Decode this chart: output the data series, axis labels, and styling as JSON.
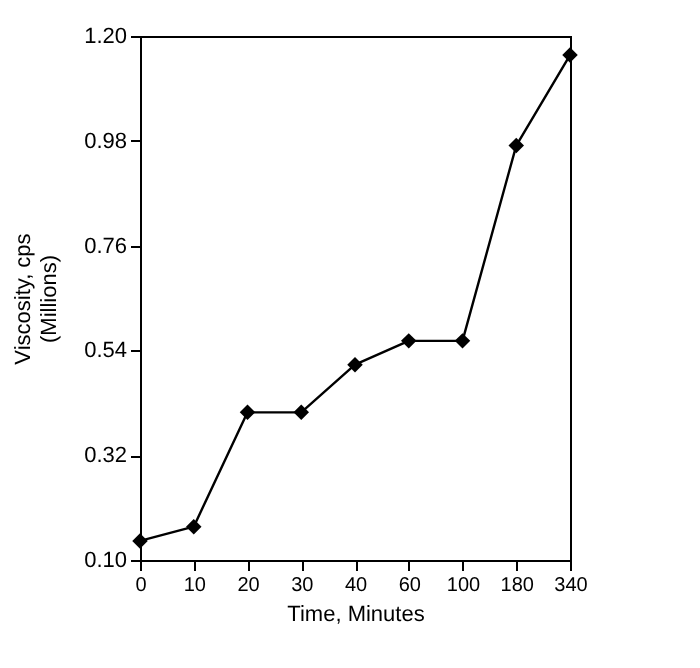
{
  "chart_data": {
    "type": "line",
    "xlabel": "Time, Minutes",
    "ylabel": "Viscosity, cps\n(Millions)",
    "categories": [
      "0",
      "10",
      "20",
      "30",
      "40",
      "60",
      "100",
      "180",
      "340"
    ],
    "series": [
      {
        "color": "#000000",
        "values": [
          0.14,
          0.17,
          0.41,
          0.41,
          0.51,
          0.56,
          0.56,
          0.97,
          1.16
        ]
      }
    ],
    "ylim": [
      0.1,
      1.2
    ],
    "yticks": [
      {
        "value": 0.1,
        "label": "0.10"
      },
      {
        "value": 0.32,
        "label": "0.32"
      },
      {
        "value": 0.54,
        "label": "0.54"
      },
      {
        "value": 0.76,
        "label": "0.76"
      },
      {
        "value": 0.98,
        "label": "0.98"
      },
      {
        "value": 1.2,
        "label": "1.20"
      }
    ],
    "marker": "diamond",
    "line_style": "solid",
    "grid": false
  }
}
